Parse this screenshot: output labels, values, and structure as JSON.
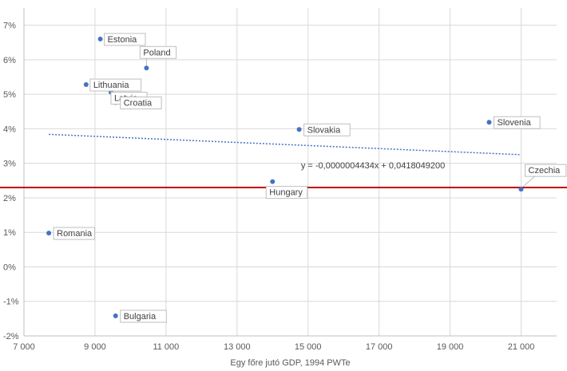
{
  "chart_data": {
    "type": "scatter",
    "xlabel": "Egy főre jutó GDP, 1994 PWTe",
    "ylabel": "",
    "xlim": [
      7000,
      22000
    ],
    "ylim": [
      -0.02,
      0.075
    ],
    "x_ticks": [
      7000,
      9000,
      11000,
      13000,
      15000,
      17000,
      19000,
      21000
    ],
    "x_tick_labels": [
      "7 000",
      "9 000",
      "11 000",
      "13 000",
      "15 000",
      "17 000",
      "19 000",
      "21 000"
    ],
    "y_ticks": [
      -0.02,
      -0.01,
      0,
      0.01,
      0.02,
      0.03,
      0.04,
      0.05,
      0.06,
      0.07
    ],
    "y_tick_labels": [
      "-2%",
      "-1%",
      "0%",
      "1%",
      "2%",
      "3%",
      "4%",
      "5%",
      "6%",
      "7%"
    ],
    "grid": true,
    "points": [
      {
        "label": "Estonia",
        "x": 9150,
        "y": 0.066
      },
      {
        "label": "Poland",
        "x": 10450,
        "y": 0.0576
      },
      {
        "label": "Lithuania",
        "x": 8750,
        "y": 0.0528
      },
      {
        "label": "Latvia",
        "x": 9450,
        "y": 0.0506
      },
      {
        "label": "Croatia",
        "x": 9580,
        "y": 0.0476
      },
      {
        "label": "Slovakia",
        "x": 14750,
        "y": 0.0398
      },
      {
        "label": "Slovenia",
        "x": 20100,
        "y": 0.0419
      },
      {
        "label": "Hungary",
        "x": 14000,
        "y": 0.0247
      },
      {
        "label": "Czechia",
        "x": 21000,
        "y": 0.0225
      },
      {
        "label": "Romania",
        "x": 7700,
        "y": 0.0098
      },
      {
        "label": "Bulgaria",
        "x": 9580,
        "y": -0.0142
      }
    ],
    "trendline": {
      "x_range": [
        7700,
        21000
      ],
      "slope": -4.434e-07,
      "intercept": 0.04180492,
      "equation_label": "y = -0,0000004434x + 0,0418049200"
    },
    "reference_line": {
      "y": 0.023,
      "color": "#c00000"
    },
    "colors": {
      "points": "#4472c4",
      "trendline": "#4472c4",
      "grid": "#d9d9d9",
      "axis": "#bfbfbf"
    }
  }
}
